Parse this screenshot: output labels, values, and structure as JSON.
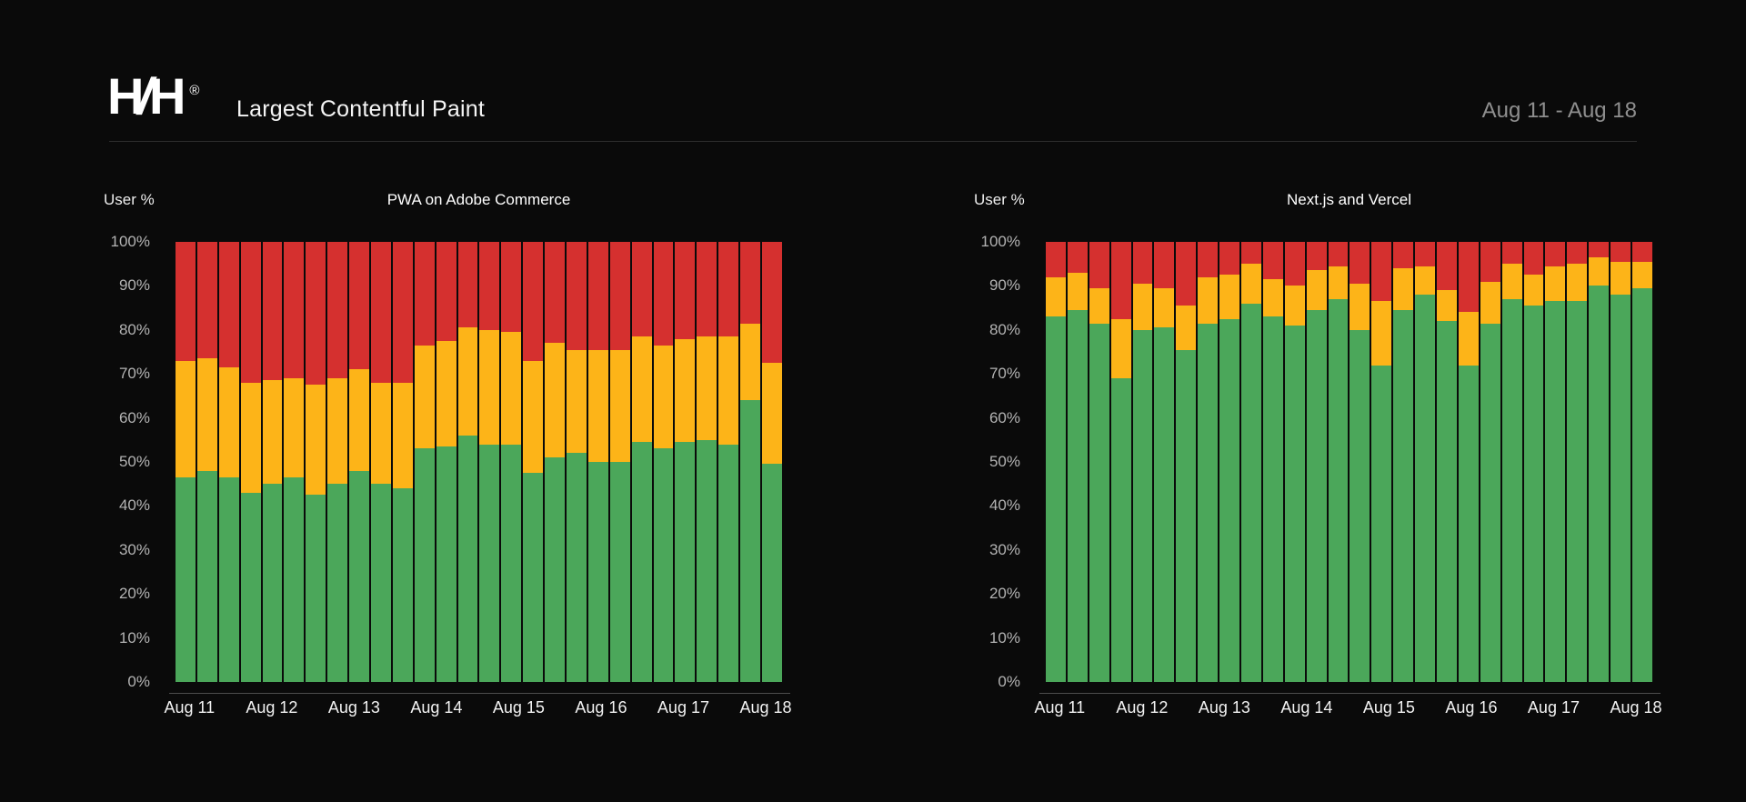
{
  "header": {
    "logo_h1": "H",
    "logo_slash": "/",
    "logo_h2": "H",
    "logo_reg": "®",
    "title": "Largest Contentful Paint",
    "date_range": "Aug 11 - Aug 18"
  },
  "colors": {
    "background": "#0a0a0a",
    "good": "#4ba75a",
    "needs_improvement": "#fdb418",
    "poor": "#d5302f",
    "axis_label": "#b3b3b3",
    "x_label": "#f2f2f2",
    "date_range": "#8f8f8f"
  },
  "chart_data": [
    {
      "type": "bar",
      "stacked": true,
      "title": "PWA on Adobe Commerce",
      "ylabel": "User %",
      "ylim": [
        0,
        100
      ],
      "grid": false,
      "legend": "none",
      "y_tick_labels": [
        "100%",
        "90%",
        "80%",
        "70%",
        "60%",
        "50%",
        "40%",
        "30%",
        "20%",
        "10%",
        "0%"
      ],
      "x_tick_labels": [
        "Aug 11",
        "Aug 12",
        "Aug 13",
        "Aug 14",
        "Aug 15",
        "Aug 16",
        "Aug 17",
        "Aug 18"
      ],
      "series": [
        {
          "name": "good",
          "color": "#4ba75a",
          "values": [
            46.5,
            48,
            46.5,
            43,
            45,
            46.5,
            42.5,
            45,
            48,
            45,
            44,
            53,
            53.5,
            56,
            54,
            54,
            47.5,
            51,
            52,
            50,
            50,
            54.5,
            53,
            54.5,
            55,
            54,
            64,
            49.5
          ]
        },
        {
          "name": "needs_improvement",
          "color": "#fdb418",
          "values": [
            26.5,
            25.5,
            25,
            25,
            23.5,
            22.5,
            25,
            24,
            23,
            23,
            24,
            23.5,
            24,
            24.5,
            26,
            25.5,
            25.5,
            26,
            23.5,
            25.5,
            25.5,
            24,
            23.5,
            23.5,
            23.5,
            24.5,
            17.5,
            23
          ]
        },
        {
          "name": "poor",
          "color": "#d5302f",
          "values": [
            27,
            26.5,
            28.5,
            32,
            31.5,
            31,
            32.5,
            31,
            29,
            32,
            32,
            23.5,
            22.5,
            19.5,
            20,
            20.5,
            27,
            23,
            24.5,
            24.5,
            24.5,
            21.5,
            23.5,
            22,
            21.5,
            21.5,
            18.5,
            27.5
          ]
        }
      ]
    },
    {
      "type": "bar",
      "stacked": true,
      "title": "Next.js and Vercel",
      "ylabel": "User %",
      "ylim": [
        0,
        100
      ],
      "grid": false,
      "legend": "none",
      "y_tick_labels": [
        "100%",
        "90%",
        "80%",
        "70%",
        "60%",
        "50%",
        "40%",
        "30%",
        "20%",
        "10%",
        "0%"
      ],
      "x_tick_labels": [
        "Aug 11",
        "Aug 12",
        "Aug 13",
        "Aug 14",
        "Aug 15",
        "Aug 16",
        "Aug 17",
        "Aug 18"
      ],
      "series": [
        {
          "name": "good",
          "color": "#4ba75a",
          "values": [
            83,
            84.5,
            81.5,
            69,
            80,
            80.5,
            75.5,
            81.5,
            82.5,
            86,
            83,
            81,
            84.5,
            87,
            80,
            72,
            84.5,
            88,
            82,
            72,
            81.5,
            87,
            85.5,
            86.5,
            86.5,
            90,
            88,
            89.5
          ]
        },
        {
          "name": "needs_improvement",
          "color": "#fdb418",
          "values": [
            9,
            8.5,
            8,
            13.5,
            10.5,
            9,
            10,
            10.5,
            10,
            9,
            8.5,
            9,
            9,
            7.5,
            10.5,
            14.5,
            9.5,
            6.5,
            7,
            12,
            9.5,
            8,
            7,
            8,
            8.5,
            6.5,
            7.5,
            6
          ]
        },
        {
          "name": "poor",
          "color": "#d5302f",
          "values": [
            8,
            7,
            10.5,
            17.5,
            9.5,
            10.5,
            14.5,
            8,
            7.5,
            5,
            8.5,
            10,
            6.5,
            5.5,
            9.5,
            13.5,
            6,
            5.5,
            11,
            16,
            9,
            5,
            7.5,
            5.5,
            5,
            3.5,
            4.5,
            4.5
          ]
        }
      ]
    }
  ]
}
